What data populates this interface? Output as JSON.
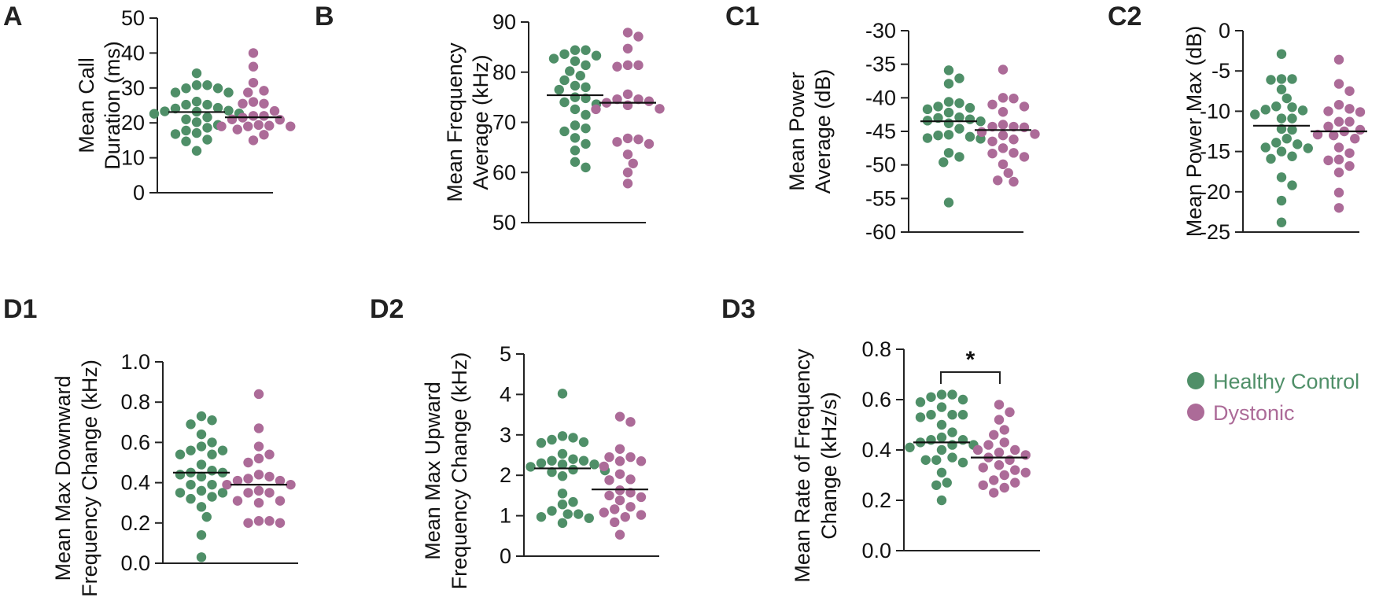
{
  "legend": {
    "placement": "right",
    "items": [
      {
        "label": "Healthy Control",
        "color": "#4f8f68",
        "icon": "filled-circle"
      },
      {
        "label": "Dystonic",
        "color": "#ac6b98",
        "icon": "filled-circle"
      }
    ]
  },
  "chart_data": [
    {
      "id": "A",
      "type": "scatter",
      "subtype": "dot-plot-with-mean",
      "panel_label": "A",
      "ylabel": [
        "Mean Call",
        "Duration (ms)"
      ],
      "ylim": [
        0,
        50
      ],
      "yticks": [
        0,
        10,
        20,
        30,
        40,
        50
      ],
      "ytick_labels": [
        "0",
        "10",
        "20",
        "30",
        "40",
        "50"
      ],
      "series": [
        {
          "name": "Healthy Control",
          "mean": 23.1,
          "values": [
            34.2,
            30.8,
            30.8,
            29.9,
            29.9,
            28.7,
            28.7,
            26.1,
            25.2,
            25.2,
            24.3,
            24.1,
            23.5,
            23.3,
            23.2,
            22.7,
            22.6,
            21.6,
            21.0,
            20.2,
            19.4,
            18.6,
            17.8,
            17.1,
            16.8,
            15.2,
            14.7,
            12.0
          ]
        },
        {
          "name": "Dystonic",
          "mean": 21.6,
          "values": [
            40.0,
            36.1,
            31.5,
            29.2,
            28.7,
            26.0,
            25.5,
            25.5,
            23.4,
            22.0,
            22.0,
            21.5,
            21.0,
            20.9,
            19.4,
            19.2,
            19.0,
            19.0,
            19.0,
            18.1,
            16.6,
            15.0
          ]
        }
      ]
    },
    {
      "id": "B",
      "type": "scatter",
      "subtype": "dot-plot-with-mean",
      "panel_label": "B",
      "ylabel": [
        "Mean Frequency",
        "Average (kHz)"
      ],
      "ylim": [
        50,
        90
      ],
      "yticks": [
        50,
        60,
        70,
        80,
        90
      ],
      "ytick_labels": [
        "50",
        "60",
        "70",
        "80",
        "90"
      ],
      "series": [
        {
          "name": "Healthy Control",
          "mean": 75.4,
          "values": [
            84.4,
            84.4,
            83.6,
            83.3,
            82.7,
            82.2,
            81.4,
            80.2,
            79.3,
            78.4,
            77.3,
            77.0,
            76.5,
            75.0,
            74.8,
            74.0,
            73.6,
            72.6,
            71.5,
            69.4,
            68.8,
            68.2,
            66.9,
            65.7,
            64.4,
            62.1,
            61.0
          ]
        },
        {
          "name": "Dystonic",
          "mean": 73.9,
          "values": [
            87.9,
            87.1,
            84.7,
            81.4,
            81.4,
            81.1,
            75.6,
            74.6,
            74.6,
            74.2,
            73.4,
            73.9,
            72.6,
            72.7,
            66.6,
            66.8,
            66.1,
            65.7,
            63.6,
            61.8,
            60.0,
            57.8
          ]
        }
      ]
    },
    {
      "id": "C1",
      "type": "scatter",
      "subtype": "dot-plot-with-mean",
      "panel_label": "C1",
      "ylabel": [
        "Mean Power",
        "Average (dB)"
      ],
      "ylim": [
        -60,
        -30
      ],
      "yticks": [
        -60,
        -55,
        -50,
        -45,
        -40,
        -35,
        -30
      ],
      "ytick_labels": [
        "-60",
        "-55",
        "-50",
        "-45",
        "-40",
        "-35",
        "-30"
      ],
      "series": [
        {
          "name": "Healthy Control",
          "mean": -43.5,
          "values": [
            -35.9,
            -37.1,
            -37.9,
            -40.8,
            -40.6,
            -41.5,
            -41.7,
            -41.3,
            -42.2,
            -43.0,
            -43.2,
            -42.9,
            -43.4,
            -43.8,
            -43.5,
            -44.6,
            -45.5,
            -45.8,
            -46.0,
            -46.1,
            -45.6,
            -48.2,
            -48.8,
            -49.6,
            -55.6
          ]
        },
        {
          "name": "Dystonic",
          "mean": -44.8,
          "values": [
            -35.8,
            -40.1,
            -40.0,
            -41.0,
            -41.3,
            -42.1,
            -44.0,
            -44.3,
            -44.4,
            -44.3,
            -45.6,
            -45.1,
            -45.4,
            -46.2,
            -46.5,
            -47.5,
            -48.3,
            -48.2,
            -48.8,
            -49.9,
            -51.2,
            -52.3,
            -52.5
          ]
        }
      ]
    },
    {
      "id": "C2",
      "type": "scatter",
      "subtype": "dot-plot-with-mean",
      "panel_label": "C2",
      "ylabel": [
        "Mean Power Max (dB)"
      ],
      "ylim": [
        -25,
        0
      ],
      "yticks": [
        -25,
        -20,
        -15,
        -10,
        -5,
        0
      ],
      "ytick_labels": [
        "-25",
        "-20",
        "-15",
        "-10",
        "-5",
        "0"
      ],
      "series": [
        {
          "name": "Healthy Control",
          "mean": -11.8,
          "values": [
            -2.9,
            -6.0,
            -6.1,
            -6.0,
            -7.3,
            -8.4,
            -9.5,
            -9.4,
            -9.8,
            -9.9,
            -10.9,
            -10.4,
            -10.9,
            -12.2,
            -12.3,
            -13.4,
            -14.1,
            -13.9,
            -14.6,
            -15.0,
            -14.5,
            -15.9,
            -15.6,
            -18.2,
            -19.2,
            -21.1,
            -23.8
          ]
        },
        {
          "name": "Dystonic",
          "mean": -12.5,
          "values": [
            -3.6,
            -6.6,
            -7.5,
            -9.2,
            -10.0,
            -10.1,
            -9.7,
            -11.3,
            -11.3,
            -11.9,
            -12.3,
            -12.9,
            -12.5,
            -13.0,
            -13.4,
            -14.5,
            -16.1,
            -15.2,
            -16.0,
            -16.8,
            -17.6,
            -20.1,
            -22.0
          ]
        }
      ]
    },
    {
      "id": "D1",
      "type": "scatter",
      "subtype": "dot-plot-with-mean",
      "panel_label": "D1",
      "ylabel": [
        "Mean Max Downward",
        "Frequency Change (kHz)"
      ],
      "ylim": [
        0.0,
        1.0
      ],
      "yticks": [
        0.0,
        0.2,
        0.4,
        0.6,
        0.8,
        1.0
      ],
      "ytick_labels": [
        "0.0",
        "0.2",
        "0.4",
        "0.6",
        "0.8",
        "1.0"
      ],
      "series": [
        {
          "name": "Healthy Control",
          "mean": 0.45,
          "values": [
            0.73,
            0.71,
            0.69,
            0.64,
            0.6,
            0.58,
            0.56,
            0.56,
            0.54,
            0.54,
            0.49,
            0.46,
            0.45,
            0.45,
            0.44,
            0.43,
            0.39,
            0.39,
            0.36,
            0.35,
            0.35,
            0.33,
            0.32,
            0.28,
            0.23,
            0.14,
            0.03
          ]
        },
        {
          "name": "Dystonic",
          "mean": 0.39,
          "values": [
            0.84,
            0.67,
            0.58,
            0.54,
            0.52,
            0.5,
            0.44,
            0.43,
            0.42,
            0.41,
            0.41,
            0.39,
            0.39,
            0.36,
            0.35,
            0.35,
            0.31,
            0.31,
            0.3,
            0.21,
            0.2,
            0.2,
            0.21
          ]
        }
      ]
    },
    {
      "id": "D2",
      "type": "scatter",
      "subtype": "dot-plot-with-mean",
      "panel_label": "D2",
      "ylabel": [
        "Mean Max Upward",
        "Frequency Change (kHz)"
      ],
      "ylim": [
        0,
        5
      ],
      "yticks": [
        0,
        1,
        2,
        3,
        4,
        5
      ],
      "ytick_labels": [
        "0",
        "1",
        "2",
        "3",
        "4",
        "5"
      ],
      "series": [
        {
          "name": "Healthy Control",
          "mean": 2.17,
          "values": [
            4.02,
            2.97,
            2.93,
            2.88,
            2.82,
            2.8,
            2.53,
            2.4,
            2.36,
            2.36,
            2.3,
            2.27,
            2.27,
            2.21,
            2.14,
            2.12,
            2.08,
            1.98,
            1.55,
            1.34,
            1.28,
            1.12,
            1.04,
            1.04,
            0.97,
            0.94,
            0.82
          ]
        },
        {
          "name": "Dystonic",
          "mean": 1.65,
          "values": [
            3.45,
            3.32,
            2.65,
            2.45,
            2.45,
            2.35,
            2.35,
            2.22,
            2.03,
            1.9,
            1.88,
            1.63,
            1.57,
            1.5,
            1.46,
            1.38,
            1.22,
            1.16,
            1.08,
            1.02,
            0.97,
            0.84,
            0.53
          ]
        }
      ]
    },
    {
      "id": "D3",
      "type": "scatter",
      "subtype": "dot-plot-with-mean",
      "panel_label": "D3",
      "ylabel": [
        "Mean Rate of Frequency",
        "Change (kHz/s)"
      ],
      "ylim": [
        0.0,
        0.8
      ],
      "yticks": [
        0.0,
        0.2,
        0.4,
        0.6,
        0.8
      ],
      "ytick_labels": [
        "0.0",
        "0.2",
        "0.4",
        "0.6",
        "0.8"
      ],
      "significance": {
        "groups": [
          "Healthy Control",
          "Dystonic"
        ],
        "label": "*"
      },
      "series": [
        {
          "name": "Healthy Control",
          "mean": 0.43,
          "values": [
            0.62,
            0.62,
            0.61,
            0.6,
            0.59,
            0.57,
            0.54,
            0.54,
            0.54,
            0.53,
            0.5,
            0.47,
            0.45,
            0.44,
            0.44,
            0.43,
            0.42,
            0.42,
            0.41,
            0.4,
            0.37,
            0.36,
            0.36,
            0.35,
            0.31,
            0.27,
            0.26,
            0.2
          ]
        },
        {
          "name": "Dystonic",
          "mean": 0.37,
          "values": [
            0.58,
            0.55,
            0.52,
            0.48,
            0.46,
            0.43,
            0.42,
            0.4,
            0.4,
            0.39,
            0.38,
            0.37,
            0.36,
            0.34,
            0.33,
            0.32,
            0.31,
            0.3,
            0.28,
            0.27,
            0.26,
            0.25,
            0.23
          ]
        }
      ]
    }
  ]
}
